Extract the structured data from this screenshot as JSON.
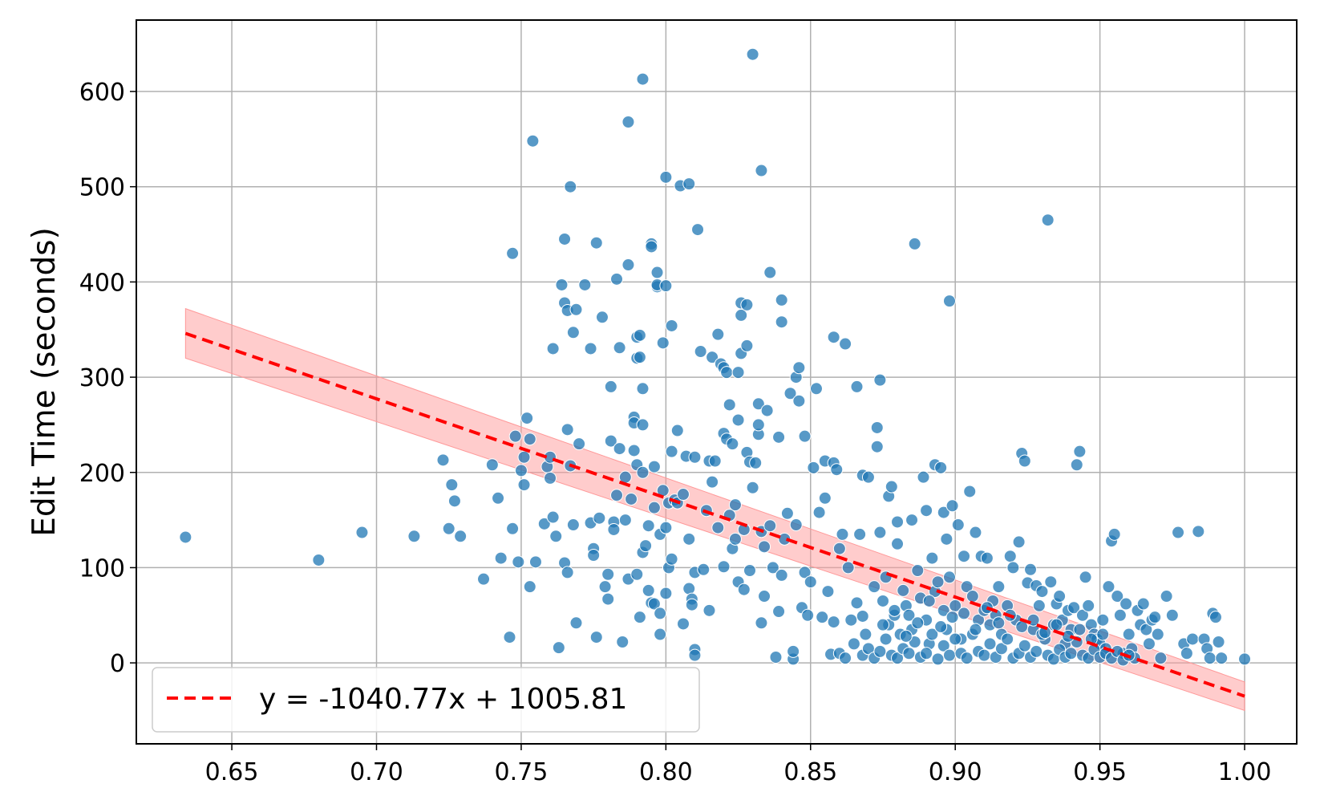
{
  "chart_data": {
    "type": "scatter",
    "title": "",
    "xlabel": "",
    "ylabel": "Edit Time (seconds)",
    "xlim": [
      0.617,
      1.018
    ],
    "ylim": [
      -85,
      675
    ],
    "xticks": [
      0.65,
      0.7,
      0.75,
      0.8,
      0.85,
      0.9,
      0.95,
      1.0
    ],
    "xtick_labels": [
      "0.65",
      "0.70",
      "0.75",
      "0.80",
      "0.85",
      "0.90",
      "0.95",
      "1.00"
    ],
    "yticks": [
      0,
      100,
      200,
      300,
      400,
      500,
      600
    ],
    "ytick_labels": [
      "0",
      "100",
      "200",
      "300",
      "400",
      "500",
      "600"
    ],
    "grid": true,
    "legend_position": "lower-left",
    "colors": {
      "points": "#1f77b4",
      "fit": "#ff0000",
      "band": "#ff9999"
    },
    "fit": {
      "label": "y = -1040.77x + 1005.81",
      "slope": -1040.77,
      "intercept": 1005.81,
      "x_range": [
        0.634,
        1.0
      ],
      "band_upper": [
        [
          0.634,
          372
        ],
        [
          1.0,
          -20
        ]
      ],
      "band_lower": [
        [
          0.634,
          320
        ],
        [
          1.0,
          -50
        ]
      ]
    },
    "points": [
      [
        0.634,
        132
      ],
      [
        0.68,
        108
      ],
      [
        0.695,
        137
      ],
      [
        0.713,
        133
      ],
      [
        0.723,
        213
      ],
      [
        0.725,
        141
      ],
      [
        0.726,
        187
      ],
      [
        0.727,
        170
      ],
      [
        0.729,
        133
      ],
      [
        0.737,
        88
      ],
      [
        0.74,
        208
      ],
      [
        0.742,
        173
      ],
      [
        0.743,
        110
      ],
      [
        0.746,
        27
      ],
      [
        0.747,
        430
      ],
      [
        0.747,
        141
      ],
      [
        0.748,
        238
      ],
      [
        0.749,
        106
      ],
      [
        0.75,
        202
      ],
      [
        0.751,
        216
      ],
      [
        0.751,
        187
      ],
      [
        0.752,
        257
      ],
      [
        0.753,
        235
      ],
      [
        0.753,
        80
      ],
      [
        0.754,
        548
      ],
      [
        0.755,
        106
      ],
      [
        0.758,
        146
      ],
      [
        0.759,
        206
      ],
      [
        0.76,
        216
      ],
      [
        0.76,
        194
      ],
      [
        0.761,
        330
      ],
      [
        0.761,
        153
      ],
      [
        0.762,
        133
      ],
      [
        0.763,
        16
      ],
      [
        0.764,
        397
      ],
      [
        0.765,
        445
      ],
      [
        0.765,
        378
      ],
      [
        0.765,
        105
      ],
      [
        0.766,
        370
      ],
      [
        0.766,
        95
      ],
      [
        0.766,
        245
      ],
      [
        0.767,
        500
      ],
      [
        0.767,
        207
      ],
      [
        0.768,
        145
      ],
      [
        0.768,
        347
      ],
      [
        0.769,
        371
      ],
      [
        0.769,
        42
      ],
      [
        0.77,
        230
      ],
      [
        0.772,
        397
      ],
      [
        0.774,
        330
      ],
      [
        0.774,
        147
      ],
      [
        0.775,
        120
      ],
      [
        0.775,
        113
      ],
      [
        0.776,
        441
      ],
      [
        0.776,
        27
      ],
      [
        0.777,
        152
      ],
      [
        0.778,
        363
      ],
      [
        0.779,
        80
      ],
      [
        0.78,
        93
      ],
      [
        0.78,
        67
      ],
      [
        0.781,
        233
      ],
      [
        0.781,
        290
      ],
      [
        0.782,
        148
      ],
      [
        0.782,
        140
      ],
      [
        0.783,
        176
      ],
      [
        0.783,
        403
      ],
      [
        0.784,
        331
      ],
      [
        0.784,
        225
      ],
      [
        0.785,
        22
      ],
      [
        0.786,
        195
      ],
      [
        0.786,
        150
      ],
      [
        0.787,
        418
      ],
      [
        0.787,
        568
      ],
      [
        0.787,
        88
      ],
      [
        0.788,
        172
      ],
      [
        0.789,
        258
      ],
      [
        0.789,
        223
      ],
      [
        0.789,
        252
      ],
      [
        0.79,
        342
      ],
      [
        0.79,
        320
      ],
      [
        0.79,
        208
      ],
      [
        0.79,
        93
      ],
      [
        0.791,
        344
      ],
      [
        0.791,
        321
      ],
      [
        0.791,
        48
      ],
      [
        0.792,
        613
      ],
      [
        0.792,
        288
      ],
      [
        0.792,
        250
      ],
      [
        0.792,
        200
      ],
      [
        0.792,
        116
      ],
      [
        0.793,
        123
      ],
      [
        0.794,
        76
      ],
      [
        0.794,
        144
      ],
      [
        0.795,
        440
      ],
      [
        0.795,
        437
      ],
      [
        0.795,
        63
      ],
      [
        0.796,
        206
      ],
      [
        0.796,
        163
      ],
      [
        0.796,
        62
      ],
      [
        0.797,
        410
      ],
      [
        0.797,
        395
      ],
      [
        0.797,
        397
      ],
      [
        0.798,
        135
      ],
      [
        0.798,
        52
      ],
      [
        0.798,
        30
      ],
      [
        0.799,
        336
      ],
      [
        0.799,
        181
      ],
      [
        0.8,
        396
      ],
      [
        0.8,
        73
      ],
      [
        0.8,
        142
      ],
      [
        0.8,
        510
      ],
      [
        0.801,
        168
      ],
      [
        0.801,
        100
      ],
      [
        0.802,
        354
      ],
      [
        0.802,
        222
      ],
      [
        0.802,
        109
      ],
      [
        0.803,
        171
      ],
      [
        0.804,
        168
      ],
      [
        0.804,
        244
      ],
      [
        0.805,
        501
      ],
      [
        0.806,
        41
      ],
      [
        0.806,
        177
      ],
      [
        0.807,
        217
      ],
      [
        0.808,
        503
      ],
      [
        0.808,
        130
      ],
      [
        0.808,
        78
      ],
      [
        0.809,
        67
      ],
      [
        0.809,
        61
      ],
      [
        0.81,
        14
      ],
      [
        0.81,
        8
      ],
      [
        0.81,
        216
      ],
      [
        0.81,
        95
      ],
      [
        0.811,
        455
      ],
      [
        0.812,
        327
      ],
      [
        0.813,
        98
      ],
      [
        0.814,
        160
      ],
      [
        0.815,
        212
      ],
      [
        0.815,
        55
      ],
      [
        0.816,
        321
      ],
      [
        0.816,
        190
      ],
      [
        0.817,
        212
      ],
      [
        0.818,
        345
      ],
      [
        0.818,
        142
      ],
      [
        0.819,
        314
      ],
      [
        0.82,
        241
      ],
      [
        0.82,
        310
      ],
      [
        0.82,
        101
      ],
      [
        0.821,
        305
      ],
      [
        0.821,
        235
      ],
      [
        0.822,
        271
      ],
      [
        0.822,
        155
      ],
      [
        0.823,
        120
      ],
      [
        0.823,
        230
      ],
      [
        0.824,
        130
      ],
      [
        0.824,
        166
      ],
      [
        0.825,
        255
      ],
      [
        0.825,
        85
      ],
      [
        0.825,
        305
      ],
      [
        0.826,
        378
      ],
      [
        0.826,
        365
      ],
      [
        0.826,
        325
      ],
      [
        0.827,
        77
      ],
      [
        0.827,
        140
      ],
      [
        0.828,
        376
      ],
      [
        0.828,
        333
      ],
      [
        0.828,
        221
      ],
      [
        0.829,
        211
      ],
      [
        0.829,
        97
      ],
      [
        0.83,
        639
      ],
      [
        0.83,
        184
      ],
      [
        0.831,
        210
      ],
      [
        0.832,
        272
      ],
      [
        0.832,
        240
      ],
      [
        0.832,
        250
      ],
      [
        0.833,
        517
      ],
      [
        0.833,
        138
      ],
      [
        0.833,
        42
      ],
      [
        0.834,
        122
      ],
      [
        0.834,
        70
      ],
      [
        0.835,
        265
      ],
      [
        0.836,
        410
      ],
      [
        0.836,
        144
      ],
      [
        0.837,
        100
      ],
      [
        0.838,
        6
      ],
      [
        0.839,
        237
      ],
      [
        0.839,
        54
      ],
      [
        0.84,
        381
      ],
      [
        0.84,
        358
      ],
      [
        0.84,
        92
      ],
      [
        0.841,
        130
      ],
      [
        0.842,
        157
      ],
      [
        0.843,
        283
      ],
      [
        0.844,
        4
      ],
      [
        0.844,
        12
      ],
      [
        0.845,
        300
      ],
      [
        0.845,
        145
      ],
      [
        0.846,
        310
      ],
      [
        0.846,
        275
      ],
      [
        0.847,
        58
      ],
      [
        0.848,
        238
      ],
      [
        0.848,
        95
      ],
      [
        0.849,
        50
      ],
      [
        0.85,
        85
      ],
      [
        0.851,
        205
      ],
      [
        0.852,
        288
      ],
      [
        0.853,
        158
      ],
      [
        0.854,
        48
      ],
      [
        0.855,
        212
      ],
      [
        0.855,
        173
      ],
      [
        0.856,
        75
      ],
      [
        0.857,
        9
      ],
      [
        0.858,
        342
      ],
      [
        0.858,
        210
      ],
      [
        0.858,
        43
      ],
      [
        0.859,
        203
      ],
      [
        0.86,
        120
      ],
      [
        0.861,
        135
      ],
      [
        0.862,
        335
      ],
      [
        0.863,
        100
      ],
      [
        0.864,
        45
      ],
      [
        0.866,
        290
      ],
      [
        0.866,
        63
      ],
      [
        0.867,
        135
      ],
      [
        0.868,
        197
      ],
      [
        0.868,
        49
      ],
      [
        0.869,
        30
      ],
      [
        0.87,
        195
      ],
      [
        0.872,
        80
      ],
      [
        0.873,
        247
      ],
      [
        0.873,
        227
      ],
      [
        0.874,
        137
      ],
      [
        0.874,
        297
      ],
      [
        0.875,
        65
      ],
      [
        0.876,
        90
      ],
      [
        0.877,
        175
      ],
      [
        0.877,
        40
      ],
      [
        0.878,
        185
      ],
      [
        0.879,
        50
      ],
      [
        0.88,
        148
      ],
      [
        0.88,
        125
      ],
      [
        0.881,
        30
      ],
      [
        0.882,
        76
      ],
      [
        0.883,
        60
      ],
      [
        0.884,
        50
      ],
      [
        0.885,
        150
      ],
      [
        0.885,
        35
      ],
      [
        0.886,
        440
      ],
      [
        0.887,
        97
      ],
      [
        0.888,
        68
      ],
      [
        0.889,
        195
      ],
      [
        0.89,
        160
      ],
      [
        0.89,
        45
      ],
      [
        0.891,
        20
      ],
      [
        0.892,
        110
      ],
      [
        0.893,
        208
      ],
      [
        0.893,
        75
      ],
      [
        0.894,
        85
      ],
      [
        0.895,
        205
      ],
      [
        0.896,
        55
      ],
      [
        0.896,
        158
      ],
      [
        0.897,
        130
      ],
      [
        0.897,
        35
      ],
      [
        0.898,
        380
      ],
      [
        0.898,
        90
      ],
      [
        0.899,
        165
      ],
      [
        0.9,
        60
      ],
      [
        0.901,
        145
      ],
      [
        0.902,
        25
      ],
      [
        0.903,
        112
      ],
      [
        0.904,
        80
      ],
      [
        0.905,
        180
      ],
      [
        0.906,
        70
      ],
      [
        0.907,
        137
      ],
      [
        0.908,
        45
      ],
      [
        0.909,
        112
      ],
      [
        0.91,
        55
      ],
      [
        0.911,
        110
      ],
      [
        0.912,
        20
      ],
      [
        0.913,
        65
      ],
      [
        0.914,
        50
      ],
      [
        0.915,
        80
      ],
      [
        0.916,
        30
      ],
      [
        0.918,
        60
      ],
      [
        0.919,
        112
      ],
      [
        0.92,
        100
      ],
      [
        0.921,
        45
      ],
      [
        0.922,
        127
      ],
      [
        0.923,
        220
      ],
      [
        0.924,
        212
      ],
      [
        0.925,
        84
      ],
      [
        0.926,
        98
      ],
      [
        0.927,
        35
      ],
      [
        0.928,
        81
      ],
      [
        0.929,
        60
      ],
      [
        0.93,
        75
      ],
      [
        0.931,
        25
      ],
      [
        0.932,
        465
      ],
      [
        0.933,
        85
      ],
      [
        0.934,
        40
      ],
      [
        0.935,
        62
      ],
      [
        0.936,
        70
      ],
      [
        0.937,
        45
      ],
      [
        0.938,
        20
      ],
      [
        0.939,
        55
      ],
      [
        0.94,
        35
      ],
      [
        0.941,
        58
      ],
      [
        0.942,
        208
      ],
      [
        0.943,
        222
      ],
      [
        0.944,
        50
      ],
      [
        0.945,
        90
      ],
      [
        0.946,
        60
      ],
      [
        0.947,
        40
      ],
      [
        0.948,
        30
      ],
      [
        0.949,
        25
      ],
      [
        0.95,
        20
      ],
      [
        0.951,
        45
      ],
      [
        0.952,
        15
      ],
      [
        0.953,
        80
      ],
      [
        0.954,
        128
      ],
      [
        0.955,
        135
      ],
      [
        0.956,
        70
      ],
      [
        0.957,
        50
      ],
      [
        0.958,
        10
      ],
      [
        0.959,
        62
      ],
      [
        0.96,
        30
      ],
      [
        0.961,
        15
      ],
      [
        0.962,
        5
      ],
      [
        0.963,
        55
      ],
      [
        0.964,
        40
      ],
      [
        0.965,
        62
      ],
      [
        0.966,
        35
      ],
      [
        0.967,
        20
      ],
      [
        0.968,
        45
      ],
      [
        0.969,
        48
      ],
      [
        0.97,
        30
      ],
      [
        0.971,
        5
      ],
      [
        0.973,
        70
      ],
      [
        0.975,
        50
      ],
      [
        0.977,
        137
      ],
      [
        0.979,
        20
      ],
      [
        0.98,
        10
      ],
      [
        0.982,
        25
      ],
      [
        0.984,
        138
      ],
      [
        0.986,
        25
      ],
      [
        0.987,
        15
      ],
      [
        0.988,
        5
      ],
      [
        0.989,
        52
      ],
      [
        0.99,
        48
      ],
      [
        0.991,
        22
      ],
      [
        0.992,
        5
      ],
      [
        1.0,
        4
      ],
      [
        0.86,
        10
      ],
      [
        0.862,
        5
      ],
      [
        0.865,
        20
      ],
      [
        0.868,
        8
      ],
      [
        0.87,
        15
      ],
      [
        0.872,
        5
      ],
      [
        0.874,
        12
      ],
      [
        0.876,
        25
      ],
      [
        0.878,
        8
      ],
      [
        0.88,
        5
      ],
      [
        0.882,
        15
      ],
      [
        0.884,
        10
      ],
      [
        0.886,
        22
      ],
      [
        0.888,
        6
      ],
      [
        0.89,
        10
      ],
      [
        0.892,
        30
      ],
      [
        0.894,
        4
      ],
      [
        0.896,
        18
      ],
      [
        0.898,
        8
      ],
      [
        0.9,
        25
      ],
      [
        0.902,
        10
      ],
      [
        0.904,
        5
      ],
      [
        0.906,
        30
      ],
      [
        0.908,
        12
      ],
      [
        0.91,
        8
      ],
      [
        0.912,
        40
      ],
      [
        0.914,
        6
      ],
      [
        0.916,
        15
      ],
      [
        0.918,
        25
      ],
      [
        0.92,
        5
      ],
      [
        0.922,
        10
      ],
      [
        0.924,
        18
      ],
      [
        0.926,
        6
      ],
      [
        0.928,
        12
      ],
      [
        0.93,
        30
      ],
      [
        0.932,
        8
      ],
      [
        0.934,
        4
      ],
      [
        0.936,
        14
      ],
      [
        0.938,
        6
      ],
      [
        0.94,
        10
      ],
      [
        0.942,
        22
      ],
      [
        0.944,
        8
      ],
      [
        0.946,
        5
      ],
      [
        0.948,
        14
      ],
      [
        0.95,
        6
      ],
      [
        0.952,
        10
      ],
      [
        0.954,
        5
      ],
      [
        0.956,
        12
      ],
      [
        0.958,
        3
      ],
      [
        0.96,
        8
      ],
      [
        0.875,
        40
      ],
      [
        0.879,
        55
      ],
      [
        0.883,
        28
      ],
      [
        0.887,
        42
      ],
      [
        0.891,
        65
      ],
      [
        0.895,
        38
      ],
      [
        0.899,
        48
      ],
      [
        0.903,
        52
      ],
      [
        0.907,
        35
      ],
      [
        0.911,
        58
      ],
      [
        0.915,
        42
      ],
      [
        0.919,
        50
      ],
      [
        0.923,
        38
      ],
      [
        0.927,
        45
      ],
      [
        0.931,
        32
      ],
      [
        0.935,
        40
      ],
      [
        0.939,
        28
      ],
      [
        0.943,
        35
      ],
      [
        0.947,
        25
      ],
      [
        0.951,
        30
      ]
    ]
  }
}
